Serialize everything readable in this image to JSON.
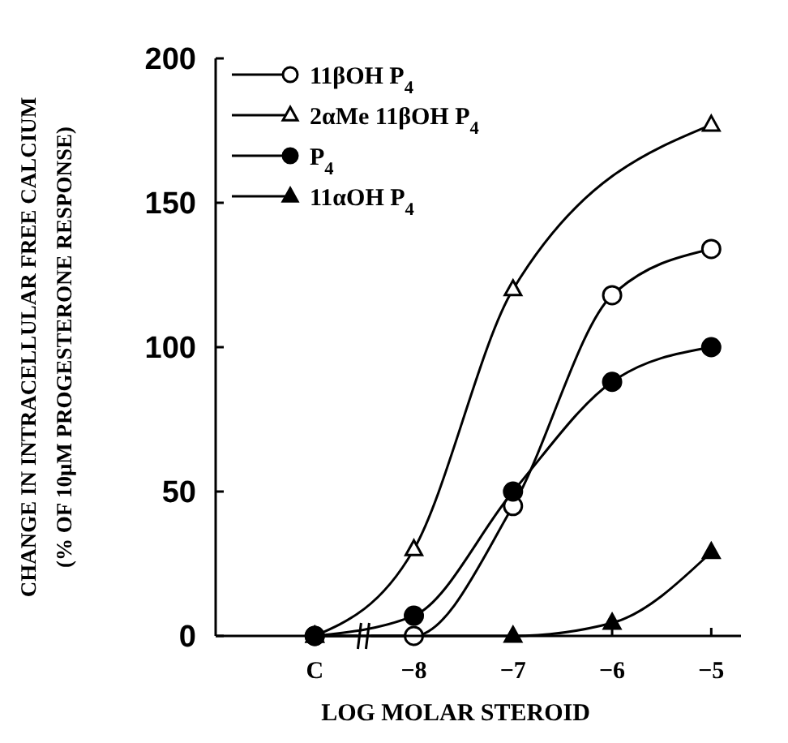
{
  "chart_data": {
    "type": "line",
    "xlabel": "LOG MOLAR STEROID",
    "ylabel": "CHANGE IN INTRACELLULAR FREE CALCIUM\n(% OF 10μM PROGESTERONE RESPONSE)",
    "xlim": [
      -10,
      -4.7
    ],
    "xticks": [
      {
        "value": -9,
        "label": "C"
      },
      {
        "value": -8,
        "label": "−8"
      },
      {
        "value": -7,
        "label": "−7"
      },
      {
        "value": -6,
        "label": "−6"
      },
      {
        "value": -5,
        "label": "−5"
      }
    ],
    "ylim": [
      0,
      200
    ],
    "yticks": [
      0,
      50,
      100,
      150,
      200
    ],
    "grid": false,
    "legend": "top left",
    "line_style": "solid",
    "series": [
      {
        "name": "11βOH P$_{4}$",
        "color": "#ffffff",
        "marker": "circle",
        "x": [
          -9,
          -8,
          -7,
          -6,
          -5
        ],
        "values": [
          0,
          0,
          45,
          118,
          134
        ]
      },
      {
        "name": "2αMe 11βOH P$_{4}$",
        "color": "#ffffff",
        "marker": "triangle",
        "x": [
          -9,
          -8,
          -7,
          -5
        ],
        "values": [
          0,
          30,
          120,
          177
        ]
      },
      {
        "name": "P$_{4}$",
        "color": "#000000",
        "marker": "circle",
        "x": [
          -9,
          -8,
          -7,
          -6,
          -5
        ],
        "values": [
          0,
          7,
          50,
          88,
          100
        ]
      },
      {
        "name": "11αOH P$_{4}$",
        "color": "#000000",
        "marker": "triangle",
        "x": [
          -9,
          -7,
          -6,
          -5
        ],
        "values": [
          0,
          0,
          4.5,
          29
        ]
      }
    ]
  }
}
